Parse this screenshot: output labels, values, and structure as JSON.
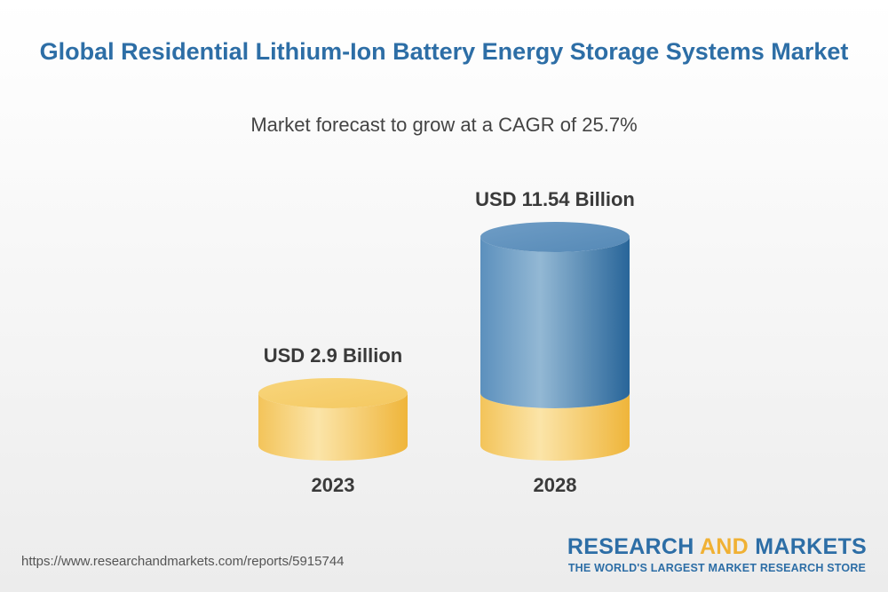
{
  "chart_data": {
    "type": "bar",
    "title": "Global Residential Lithium-Ion Battery Energy Storage Systems Market",
    "subtitle": "Market forecast to grow at a CAGR of 25.7%",
    "categories": [
      "2023",
      "2028"
    ],
    "values": [
      2.9,
      11.54
    ],
    "data_labels": [
      "USD 2.9 Billion",
      "USD 11.54 Billion"
    ],
    "unit": "USD Billion",
    "grid": false,
    "legend": "none"
  },
  "footer": {
    "source_url": "https://www.researchandmarkets.com/reports/5915744",
    "logo_primary": "RESEARCH",
    "logo_accent": "AND",
    "logo_secondary": "MARKETS",
    "logo_tagline": "THE WORLD'S LARGEST MARKET RESEARCH STORE"
  },
  "colors": {
    "title": "#2d6ea6",
    "base_light": "#fbe2a2",
    "base_dark": "#f0b73c",
    "growth_light": "#90b6d2",
    "growth_dark": "#2a689e"
  }
}
